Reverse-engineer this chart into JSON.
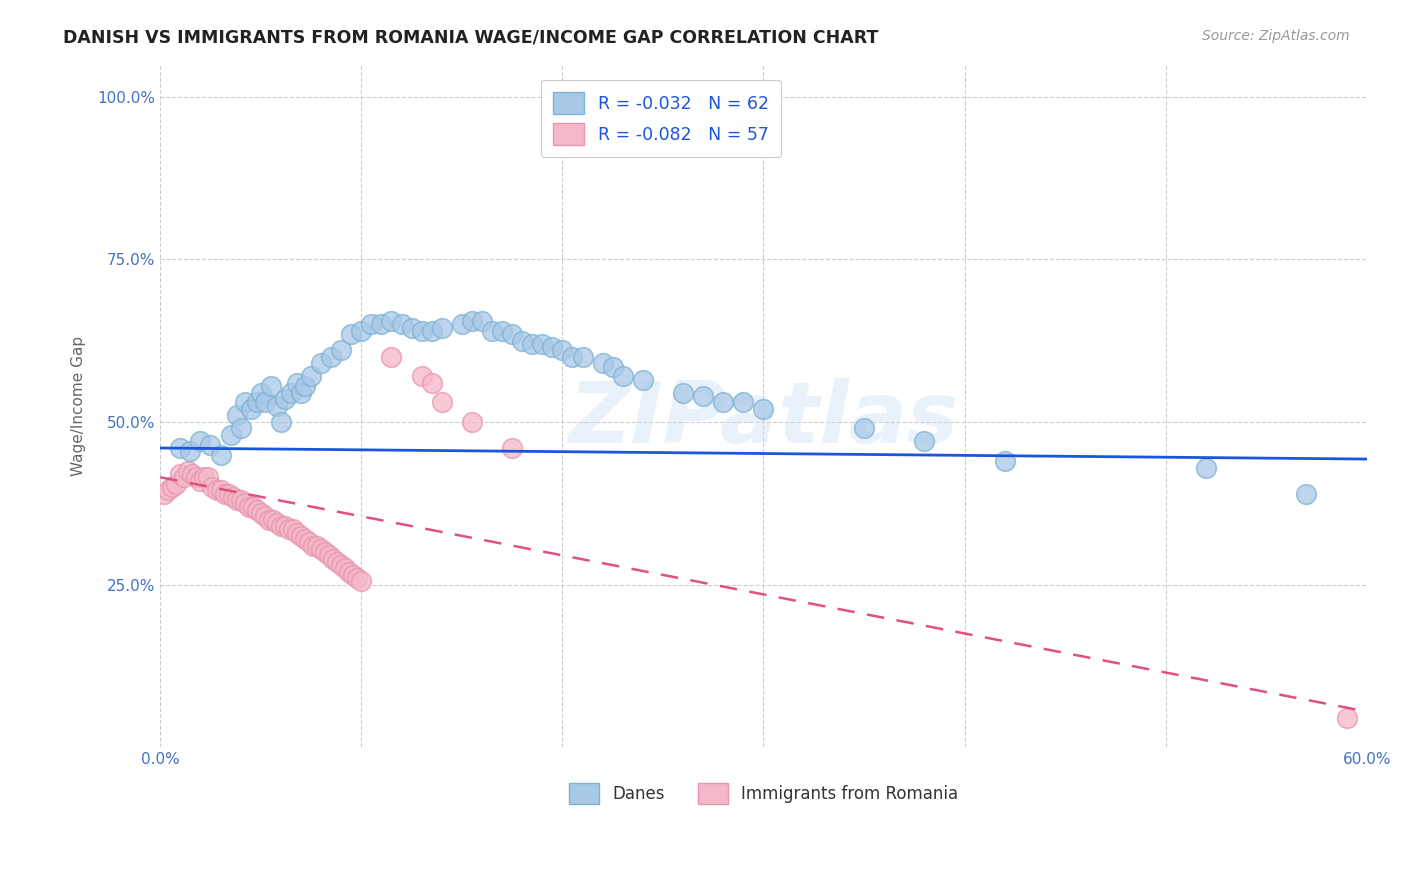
{
  "title": "DANISH VS IMMIGRANTS FROM ROMANIA WAGE/INCOME GAP CORRELATION CHART",
  "source": "Source: ZipAtlas.com",
  "ylabel": "Wage/Income Gap",
  "watermark": "ZIPatlas",
  "legend_danes": {
    "R": -0.032,
    "N": 62
  },
  "legend_romania": {
    "R": -0.082,
    "N": 57
  },
  "xlim": [
    0.0,
    0.6
  ],
  "ylim": [
    0.0,
    1.05
  ],
  "xticks": [
    0.0,
    0.1,
    0.2,
    0.3,
    0.4,
    0.5,
    0.6
  ],
  "xticklabels": [
    "0.0%",
    "",
    "",
    "",
    "",
    "",
    "60.0%"
  ],
  "yticks": [
    0.0,
    0.25,
    0.5,
    0.75,
    1.0
  ],
  "yticklabels": [
    "",
    "25.0%",
    "50.0%",
    "75.0%",
    "100.0%"
  ],
  "danes_color": "#a8c8e8",
  "danes_edge_color": "#7fb3d3",
  "danes_line_color": "#1a56db",
  "romania_color": "#f4b8c8",
  "romania_edge_color": "#e896b0",
  "romania_line_color": "#e05080",
  "background_color": "#ffffff",
  "grid_color": "#c8c8c8",
  "title_color": "#222222",
  "axis_label_color": "#666666",
  "tick_label_color": "#4472c4",
  "danes_trend_x0": 0.0,
  "danes_trend_x1": 0.6,
  "danes_trend_y0": 0.46,
  "danes_trend_y1": 0.443,
  "romania_trend_x0": 0.0,
  "romania_trend_x1": 0.6,
  "romania_trend_y0": 0.415,
  "romania_trend_y1": 0.055,
  "danes_x": [
    0.01,
    0.015,
    0.02,
    0.025,
    0.03,
    0.035,
    0.038,
    0.04,
    0.042,
    0.045,
    0.048,
    0.05,
    0.052,
    0.055,
    0.058,
    0.06,
    0.062,
    0.065,
    0.068,
    0.07,
    0.072,
    0.075,
    0.08,
    0.085,
    0.09,
    0.095,
    0.1,
    0.105,
    0.11,
    0.115,
    0.12,
    0.125,
    0.13,
    0.135,
    0.14,
    0.15,
    0.155,
    0.16,
    0.165,
    0.17,
    0.175,
    0.18,
    0.185,
    0.19,
    0.195,
    0.2,
    0.205,
    0.21,
    0.22,
    0.225,
    0.23,
    0.24,
    0.26,
    0.27,
    0.28,
    0.29,
    0.3,
    0.35,
    0.38,
    0.42,
    0.52,
    0.57
  ],
  "danes_y": [
    0.46,
    0.455,
    0.47,
    0.465,
    0.45,
    0.48,
    0.51,
    0.49,
    0.53,
    0.52,
    0.53,
    0.545,
    0.53,
    0.555,
    0.525,
    0.5,
    0.535,
    0.545,
    0.56,
    0.545,
    0.555,
    0.57,
    0.59,
    0.6,
    0.61,
    0.635,
    0.64,
    0.65,
    0.65,
    0.655,
    0.65,
    0.645,
    0.64,
    0.64,
    0.645,
    0.65,
    0.655,
    0.655,
    0.64,
    0.64,
    0.635,
    0.625,
    0.62,
    0.62,
    0.615,
    0.61,
    0.6,
    0.6,
    0.59,
    0.585,
    0.57,
    0.565,
    0.545,
    0.54,
    0.53,
    0.53,
    0.52,
    0.49,
    0.47,
    0.44,
    0.43,
    0.39
  ],
  "romania_x": [
    0.002,
    0.004,
    0.006,
    0.008,
    0.01,
    0.012,
    0.014,
    0.016,
    0.018,
    0.02,
    0.022,
    0.024,
    0.026,
    0.028,
    0.03,
    0.032,
    0.034,
    0.036,
    0.038,
    0.04,
    0.042,
    0.044,
    0.046,
    0.048,
    0.05,
    0.052,
    0.054,
    0.056,
    0.058,
    0.06,
    0.062,
    0.064,
    0.066,
    0.068,
    0.07,
    0.072,
    0.074,
    0.076,
    0.078,
    0.08,
    0.082,
    0.084,
    0.086,
    0.088,
    0.09,
    0.092,
    0.094,
    0.096,
    0.098,
    0.1,
    0.115,
    0.13,
    0.135,
    0.14,
    0.155,
    0.175,
    0.59
  ],
  "romania_y": [
    0.39,
    0.395,
    0.4,
    0.405,
    0.42,
    0.415,
    0.425,
    0.42,
    0.415,
    0.41,
    0.415,
    0.415,
    0.4,
    0.395,
    0.395,
    0.39,
    0.39,
    0.385,
    0.38,
    0.38,
    0.375,
    0.37,
    0.37,
    0.365,
    0.36,
    0.355,
    0.35,
    0.35,
    0.345,
    0.34,
    0.34,
    0.335,
    0.335,
    0.33,
    0.325,
    0.32,
    0.315,
    0.31,
    0.31,
    0.305,
    0.3,
    0.295,
    0.29,
    0.285,
    0.28,
    0.275,
    0.27,
    0.265,
    0.26,
    0.255,
    0.6,
    0.57,
    0.56,
    0.53,
    0.5,
    0.46,
    0.045
  ]
}
